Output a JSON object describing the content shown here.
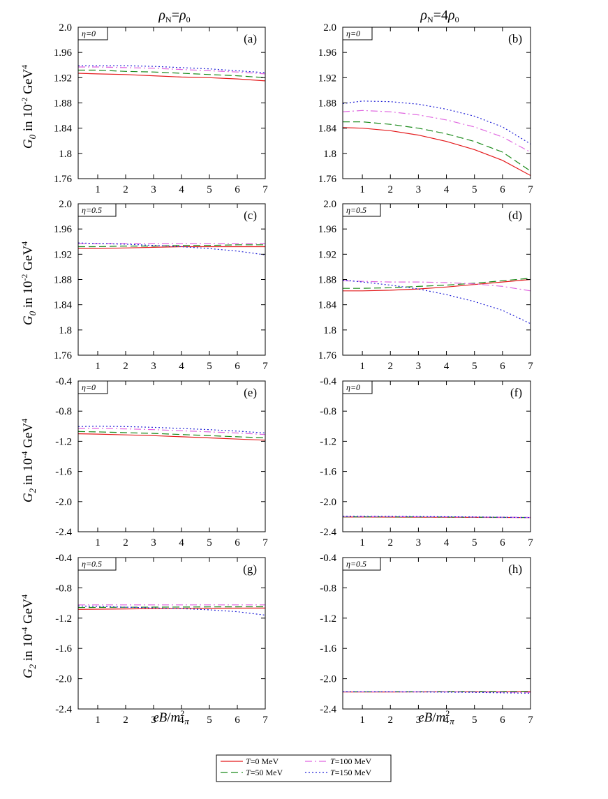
{
  "column_titles": [
    "ρN=ρ0",
    "ρN=4ρ0"
  ],
  "xlabel": "eB/m2π",
  "ylabel_G0": "G0 in 10-2 GeV4",
  "ylabel_G2": "G2 in 10-4 GeV4",
  "colors": {
    "T0": "#e41a1c",
    "T50": "#1a8a1a",
    "T100": "#e066e0",
    "T150": "#1f1fd6"
  },
  "legend": [
    {
      "key": "T0",
      "label": "T=0 MeV",
      "color": "#e41a1c",
      "dash": "solid"
    },
    {
      "key": "T100",
      "label": "T=100 MeV",
      "color": "#e066e0",
      "dash": "dashdot"
    },
    {
      "key": "T50",
      "label": "T=50 MeV",
      "color": "#1a8a1a",
      "dash": "dashed"
    },
    {
      "key": "T150",
      "label": "T=150 MeV",
      "color": "#1f1fd6",
      "dash": "dotted"
    }
  ],
  "chart_data": [
    {
      "type": "line",
      "panel": "(a)",
      "eta": "η=0",
      "row": 0,
      "col": 0,
      "xlim": [
        0.3,
        7
      ],
      "ylim": [
        1.76,
        2.0
      ],
      "xticks": [
        1,
        2,
        3,
        4,
        5,
        6,
        7
      ],
      "yticks": [
        1.76,
        1.8,
        1.84,
        1.88,
        1.92,
        1.96,
        2.0
      ],
      "ytick_labels": [
        "1.76",
        "1.8",
        "1.84",
        "1.88",
        "1.92",
        "1.96",
        "2.0"
      ],
      "x": [
        0.3,
        1,
        2,
        3,
        4,
        5,
        6,
        7
      ],
      "series": [
        {
          "key": "T0",
          "values": [
            1.927,
            1.926,
            1.925,
            1.923,
            1.921,
            1.92,
            1.918,
            1.915
          ]
        },
        {
          "key": "T50",
          "values": [
            1.932,
            1.932,
            1.93,
            1.929,
            1.927,
            1.925,
            1.923,
            1.92
          ]
        },
        {
          "key": "T100",
          "values": [
            1.937,
            1.937,
            1.936,
            1.935,
            1.933,
            1.931,
            1.929,
            1.926
          ]
        },
        {
          "key": "T150",
          "values": [
            1.939,
            1.939,
            1.939,
            1.938,
            1.936,
            1.934,
            1.931,
            1.928
          ]
        }
      ]
    },
    {
      "type": "line",
      "panel": "(b)",
      "eta": "η=0",
      "row": 0,
      "col": 1,
      "xlim": [
        0.3,
        7
      ],
      "ylim": [
        1.76,
        2.0
      ],
      "xticks": [
        1,
        2,
        3,
        4,
        5,
        6,
        7
      ],
      "yticks": [
        1.76,
        1.8,
        1.84,
        1.88,
        1.92,
        1.96,
        2.0
      ],
      "ytick_labels": [
        "1.76",
        "1.8",
        "1.84",
        "1.88",
        "1.92",
        "1.96",
        "2.0"
      ],
      "x": [
        0.3,
        1,
        2,
        3,
        4,
        5,
        6,
        7
      ],
      "series": [
        {
          "key": "T0",
          "values": [
            1.841,
            1.84,
            1.836,
            1.829,
            1.819,
            1.806,
            1.789,
            1.765
          ]
        },
        {
          "key": "T50",
          "values": [
            1.85,
            1.85,
            1.846,
            1.84,
            1.831,
            1.819,
            1.802,
            1.772
          ]
        },
        {
          "key": "T100",
          "values": [
            1.866,
            1.868,
            1.866,
            1.861,
            1.853,
            1.842,
            1.826,
            1.802
          ]
        },
        {
          "key": "T150",
          "values": [
            1.879,
            1.883,
            1.882,
            1.878,
            1.87,
            1.859,
            1.842,
            1.815
          ]
        }
      ]
    },
    {
      "type": "line",
      "panel": "(c)",
      "eta": "η=0.5",
      "row": 1,
      "col": 0,
      "xlim": [
        0.3,
        7
      ],
      "ylim": [
        1.76,
        2.0
      ],
      "xticks": [
        1,
        2,
        3,
        4,
        5,
        6,
        7
      ],
      "yticks": [
        1.76,
        1.8,
        1.84,
        1.88,
        1.92,
        1.96,
        2.0
      ],
      "ytick_labels": [
        "1.76",
        "1.8",
        "1.84",
        "1.88",
        "1.92",
        "1.96",
        "2.0"
      ],
      "x": [
        0.3,
        1,
        2,
        3,
        4,
        5,
        6,
        7
      ],
      "series": [
        {
          "key": "T0",
          "values": [
            1.929,
            1.929,
            1.93,
            1.931,
            1.932,
            1.932,
            1.932,
            1.932
          ]
        },
        {
          "key": "T50",
          "values": [
            1.932,
            1.932,
            1.933,
            1.933,
            1.934,
            1.934,
            1.935,
            1.935
          ]
        },
        {
          "key": "T100",
          "values": [
            1.937,
            1.937,
            1.937,
            1.937,
            1.937,
            1.937,
            1.937,
            1.937
          ]
        },
        {
          "key": "T150",
          "values": [
            1.938,
            1.937,
            1.936,
            1.934,
            1.932,
            1.929,
            1.925,
            1.919
          ]
        }
      ]
    },
    {
      "type": "line",
      "panel": "(d)",
      "eta": "η=0.5",
      "row": 1,
      "col": 1,
      "xlim": [
        0.3,
        7
      ],
      "ylim": [
        1.76,
        2.0
      ],
      "xticks": [
        1,
        2,
        3,
        4,
        5,
        6,
        7
      ],
      "yticks": [
        1.76,
        1.8,
        1.84,
        1.88,
        1.92,
        1.96,
        2.0
      ],
      "ytick_labels": [
        "1.76",
        "1.8",
        "1.84",
        "1.88",
        "1.92",
        "1.96",
        "2.0"
      ],
      "x": [
        0.3,
        1,
        2,
        3,
        4,
        5,
        6,
        7
      ],
      "series": [
        {
          "key": "T0",
          "values": [
            1.862,
            1.862,
            1.863,
            1.865,
            1.868,
            1.872,
            1.876,
            1.88
          ]
        },
        {
          "key": "T50",
          "values": [
            1.866,
            1.866,
            1.867,
            1.869,
            1.871,
            1.874,
            1.878,
            1.882
          ]
        },
        {
          "key": "T100",
          "values": [
            1.878,
            1.877,
            1.876,
            1.876,
            1.875,
            1.873,
            1.869,
            1.862
          ]
        },
        {
          "key": "T150",
          "values": [
            1.879,
            1.876,
            1.871,
            1.865,
            1.856,
            1.845,
            1.831,
            1.81
          ]
        }
      ]
    },
    {
      "type": "line",
      "panel": "(e)",
      "eta": "η=0",
      "row": 2,
      "col": 0,
      "xlim": [
        0.3,
        7
      ],
      "ylim": [
        -2.4,
        -0.4
      ],
      "xticks": [
        1,
        2,
        3,
        4,
        5,
        6,
        7
      ],
      "yticks": [
        -2.4,
        -2.0,
        -1.6,
        -1.2,
        -0.8,
        -0.4
      ],
      "ytick_labels": [
        "-2.4",
        "-2.0",
        "-1.6",
        "-1.2",
        "-0.8",
        "-0.4"
      ],
      "x": [
        0.3,
        1,
        2,
        3,
        4,
        5,
        6,
        7
      ],
      "series": [
        {
          "key": "T0",
          "values": [
            -1.1,
            -1.105,
            -1.115,
            -1.125,
            -1.14,
            -1.155,
            -1.17,
            -1.185
          ]
        },
        {
          "key": "T50",
          "values": [
            -1.07,
            -1.075,
            -1.085,
            -1.095,
            -1.11,
            -1.125,
            -1.14,
            -1.155
          ]
        },
        {
          "key": "T100",
          "values": [
            -1.03,
            -1.03,
            -1.035,
            -1.045,
            -1.06,
            -1.075,
            -1.09,
            -1.11
          ]
        },
        {
          "key": "T150",
          "values": [
            -1.005,
            -1.0,
            -1.005,
            -1.015,
            -1.03,
            -1.045,
            -1.065,
            -1.09
          ]
        }
      ]
    },
    {
      "type": "line",
      "panel": "(f)",
      "eta": "η=0",
      "row": 2,
      "col": 1,
      "xlim": [
        0.3,
        7
      ],
      "ylim": [
        -2.4,
        -0.4
      ],
      "xticks": [
        1,
        2,
        3,
        4,
        5,
        6,
        7
      ],
      "yticks": [
        -2.4,
        -2.0,
        -1.6,
        -1.2,
        -0.8,
        -0.4
      ],
      "ytick_labels": [
        "-2.4",
        "-2.0",
        "-1.6",
        "-1.2",
        "-0.8",
        "-0.4"
      ],
      "x": [
        0.3,
        1,
        2,
        3,
        4,
        5,
        6,
        7
      ],
      "series": [
        {
          "key": "T0",
          "values": [
            -2.205,
            -2.205,
            -2.206,
            -2.207,
            -2.208,
            -2.209,
            -2.21,
            -2.212
          ]
        },
        {
          "key": "T50",
          "values": [
            -2.202,
            -2.202,
            -2.203,
            -2.204,
            -2.206,
            -2.207,
            -2.209,
            -2.21
          ]
        },
        {
          "key": "T100",
          "values": [
            -2.198,
            -2.198,
            -2.199,
            -2.201,
            -2.203,
            -2.205,
            -2.207,
            -2.21
          ]
        },
        {
          "key": "T150",
          "values": [
            -2.195,
            -2.195,
            -2.196,
            -2.198,
            -2.201,
            -2.204,
            -2.207,
            -2.212
          ]
        }
      ]
    },
    {
      "type": "line",
      "panel": "(g)",
      "eta": "η=0.5",
      "row": 3,
      "col": 0,
      "xlim": [
        0.3,
        7
      ],
      "ylim": [
        -2.4,
        -0.4
      ],
      "xticks": [
        1,
        2,
        3,
        4,
        5,
        6,
        7
      ],
      "yticks": [
        -2.4,
        -2.0,
        -1.6,
        -1.2,
        -0.8,
        -0.4
      ],
      "ytick_labels": [
        "-2.4",
        "-2.0",
        "-1.6",
        "-1.2",
        "-0.8",
        "-0.4"
      ],
      "x": [
        0.3,
        1,
        2,
        3,
        4,
        5,
        6,
        7
      ],
      "series": [
        {
          "key": "T0",
          "values": [
            -1.085,
            -1.082,
            -1.078,
            -1.074,
            -1.071,
            -1.069,
            -1.068,
            -1.067
          ]
        },
        {
          "key": "T50",
          "values": [
            -1.06,
            -1.058,
            -1.056,
            -1.054,
            -1.053,
            -1.052,
            -1.051,
            -1.05
          ]
        },
        {
          "key": "T100",
          "values": [
            -1.025,
            -1.025,
            -1.025,
            -1.025,
            -1.025,
            -1.025,
            -1.025,
            -1.025
          ]
        },
        {
          "key": "T150",
          "values": [
            -1.04,
            -1.045,
            -1.055,
            -1.065,
            -1.075,
            -1.09,
            -1.115,
            -1.16
          ]
        }
      ]
    },
    {
      "type": "line",
      "panel": "(h)",
      "eta": "η=0.5",
      "row": 3,
      "col": 1,
      "xlim": [
        0.3,
        7
      ],
      "ylim": [
        -2.4,
        -0.4
      ],
      "xticks": [
        1,
        2,
        3,
        4,
        5,
        6,
        7
      ],
      "yticks": [
        -2.4,
        -2.0,
        -1.6,
        -1.2,
        -0.8,
        -0.4
      ],
      "ytick_labels": [
        "-2.4",
        "-2.0",
        "-1.6",
        "-1.2",
        "-0.8",
        "-0.4"
      ],
      "x": [
        0.3,
        1,
        2,
        3,
        4,
        5,
        6,
        7
      ],
      "series": [
        {
          "key": "T0",
          "values": [
            -2.175,
            -2.175,
            -2.175,
            -2.174,
            -2.173,
            -2.172,
            -2.171,
            -2.17
          ]
        },
        {
          "key": "T50",
          "values": [
            -2.173,
            -2.173,
            -2.172,
            -2.171,
            -2.17,
            -2.169,
            -2.168,
            -2.166
          ]
        },
        {
          "key": "T100",
          "values": [
            -2.172,
            -2.172,
            -2.172,
            -2.173,
            -2.174,
            -2.176,
            -2.178,
            -2.181
          ]
        },
        {
          "key": "T150",
          "values": [
            -2.171,
            -2.172,
            -2.173,
            -2.175,
            -2.178,
            -2.181,
            -2.186,
            -2.192
          ]
        }
      ]
    }
  ]
}
